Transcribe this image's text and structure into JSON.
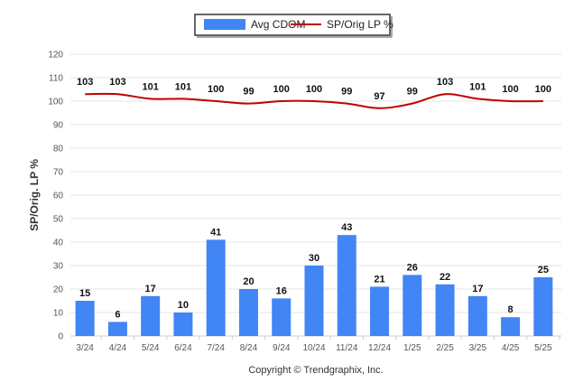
{
  "chart_data": {
    "type": "bar",
    "categories": [
      "3/24",
      "4/24",
      "5/24",
      "6/24",
      "7/24",
      "8/24",
      "9/24",
      "10/24",
      "11/24",
      "12/24",
      "1/25",
      "2/25",
      "3/25",
      "4/25",
      "5/25"
    ],
    "series": [
      {
        "name": "Avg CDOM",
        "type": "bar",
        "color": "#4285f4",
        "values": [
          15,
          6,
          17,
          10,
          41,
          20,
          16,
          30,
          43,
          21,
          26,
          22,
          17,
          8,
          25
        ]
      },
      {
        "name": "SP/Orig LP %",
        "type": "line",
        "color": "#c00000",
        "values": [
          103,
          103,
          101,
          101,
          100,
          99,
          100,
          100,
          99,
          97,
          99,
          103,
          101,
          100,
          100
        ]
      }
    ],
    "ylabel": "SP/Orig. LP %",
    "ylim": [
      0,
      120
    ],
    "yticks": [
      0,
      10,
      20,
      30,
      40,
      50,
      60,
      70,
      80,
      90,
      100,
      110,
      120
    ],
    "grid": true,
    "legend": "top-center"
  },
  "footer": {
    "copyright": "Copyright © Trendgraphix, Inc."
  }
}
